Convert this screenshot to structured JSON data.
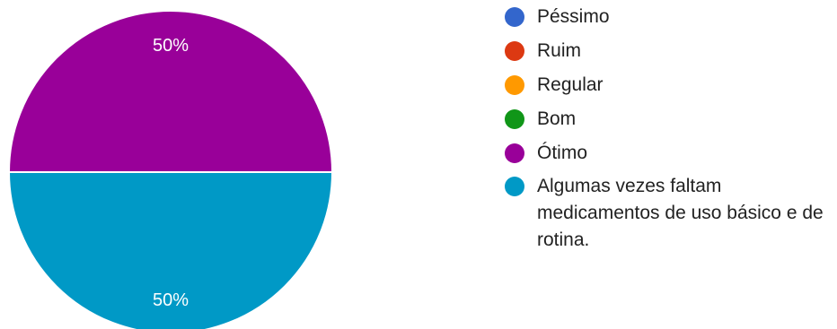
{
  "chart_data": {
    "type": "pie",
    "slices": [
      {
        "label": "Péssimo",
        "value": 0,
        "color": "#3366cc"
      },
      {
        "label": "Ruim",
        "value": 0,
        "color": "#dc3912"
      },
      {
        "label": "Regular",
        "value": 0,
        "color": "#ff9900"
      },
      {
        "label": "Bom",
        "value": 0,
        "color": "#109618"
      },
      {
        "label": "Ótimo",
        "value": 50,
        "color": "#990099",
        "display_label": "50%"
      },
      {
        "label": "Algumas vezes faltam medicamentos de uso básico e de rotina.",
        "value": 50,
        "color": "#0099c6",
        "display_label": "50%"
      }
    ],
    "legend_position": "right"
  }
}
